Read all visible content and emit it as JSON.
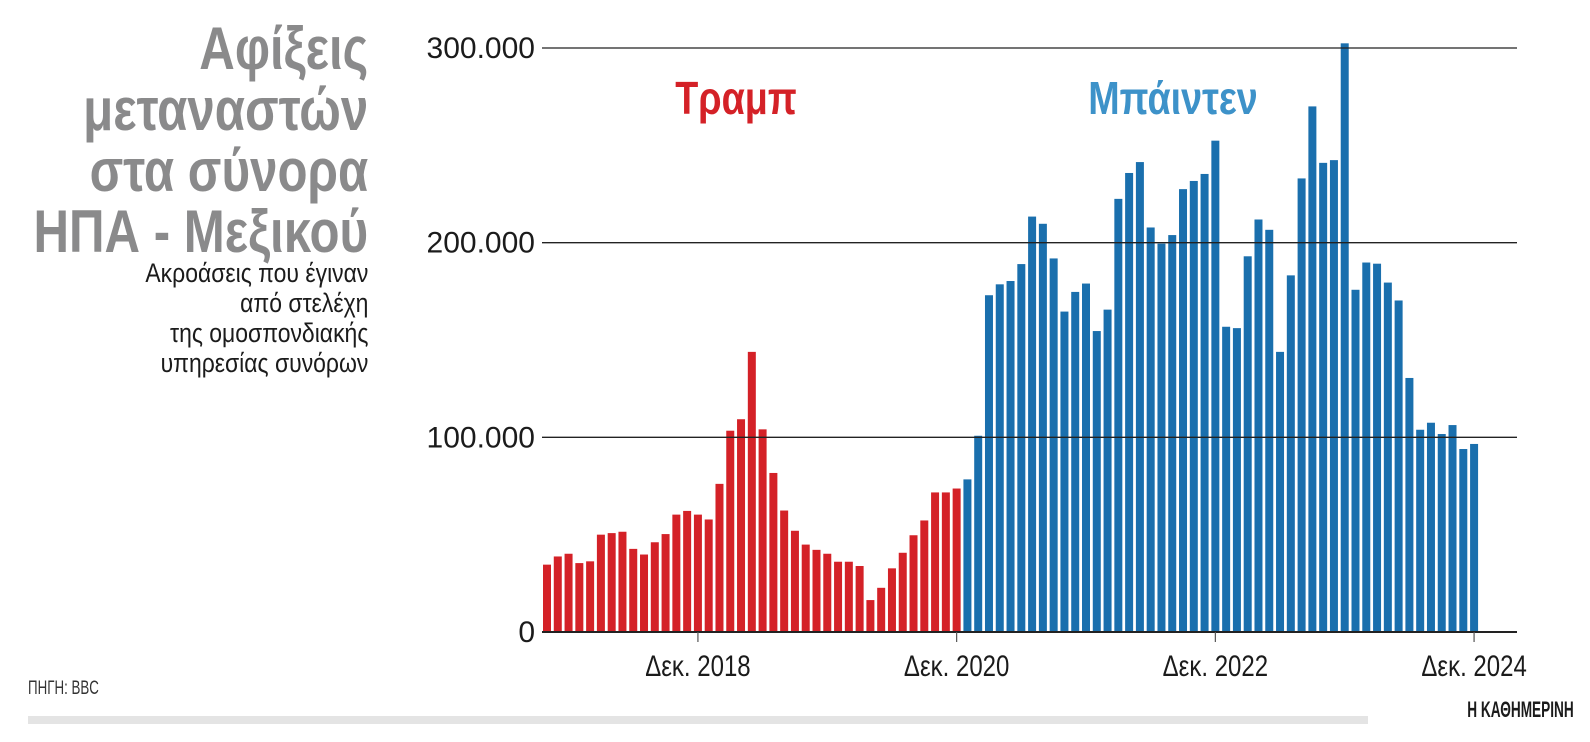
{
  "title_lines": [
    "Αφίξεις",
    "μεταναστών",
    "στα σύνορα",
    "ΗΠΑ - Μεξικού"
  ],
  "subtitle_lines": [
    "Ακροάσεις που έγιναν",
    "από στελέχη",
    "της ομοσπονδιακής",
    "υπηρεσίας συνόρων"
  ],
  "source": "ΠΗΓΗ: BBC",
  "brand": "Η ΚΑΘΗΜΕΡΙΝΗ",
  "chart_data": {
    "type": "bar",
    "title": "Αφίξεις μεταναστών στα σύνορα ΗΠΑ - Μεξικού",
    "subtitle": "Ακροάσεις που έγιναν από στελέχη της ομοσπονδιακής υπηρεσίας συνόρων",
    "xlabel": "",
    "ylabel": "",
    "ylim": [
      0,
      300000
    ],
    "yticks": [
      0,
      100000,
      200000,
      300000
    ],
    "ytick_labels": [
      "0",
      "100.000",
      "200.000",
      "300.000"
    ],
    "xticks": [
      "2018-12",
      "2020-12",
      "2022-12",
      "2024-12"
    ],
    "xtick_labels": [
      "Δεκ. 2018",
      "Δεκ. 2020",
      "Δεκ. 2022",
      "Δεκ. 2024"
    ],
    "grid": "horizontal",
    "legend": "none",
    "series": [
      {
        "name": "Τραμπ",
        "color": "#d42127",
        "start": "2017-10",
        "values": [
          34600,
          38800,
          40200,
          35400,
          36300,
          50000,
          50800,
          51500,
          42700,
          39800,
          46100,
          50300,
          60300,
          62200,
          60300,
          57800,
          76100,
          103400,
          109300,
          143900,
          104100,
          81700,
          62400,
          52000,
          44900,
          42200,
          40200,
          36100,
          36100,
          33900,
          16400,
          22700,
          32700,
          40700,
          49700,
          57300,
          71700,
          71700,
          73700
        ]
      },
      {
        "name": "Μπάιντεν",
        "color": "#1a6fad",
        "label_color": "#3d92c9",
        "start": "2021-01",
        "values": [
          78400,
          100800,
          173000,
          178600,
          180300,
          189000,
          213400,
          209700,
          191900,
          164600,
          174700,
          179000,
          154600,
          165600,
          222500,
          235800,
          241400,
          207800,
          199500,
          203900,
          227500,
          231700,
          235300,
          252400,
          156800,
          156100,
          193000,
          211900,
          206600,
          143900,
          183200,
          233000,
          270000,
          241000,
          242400,
          302400,
          175800,
          189800,
          189200,
          179500,
          170300,
          130500,
          103900,
          107500,
          101700,
          106300,
          94000,
          96600
        ]
      }
    ]
  }
}
